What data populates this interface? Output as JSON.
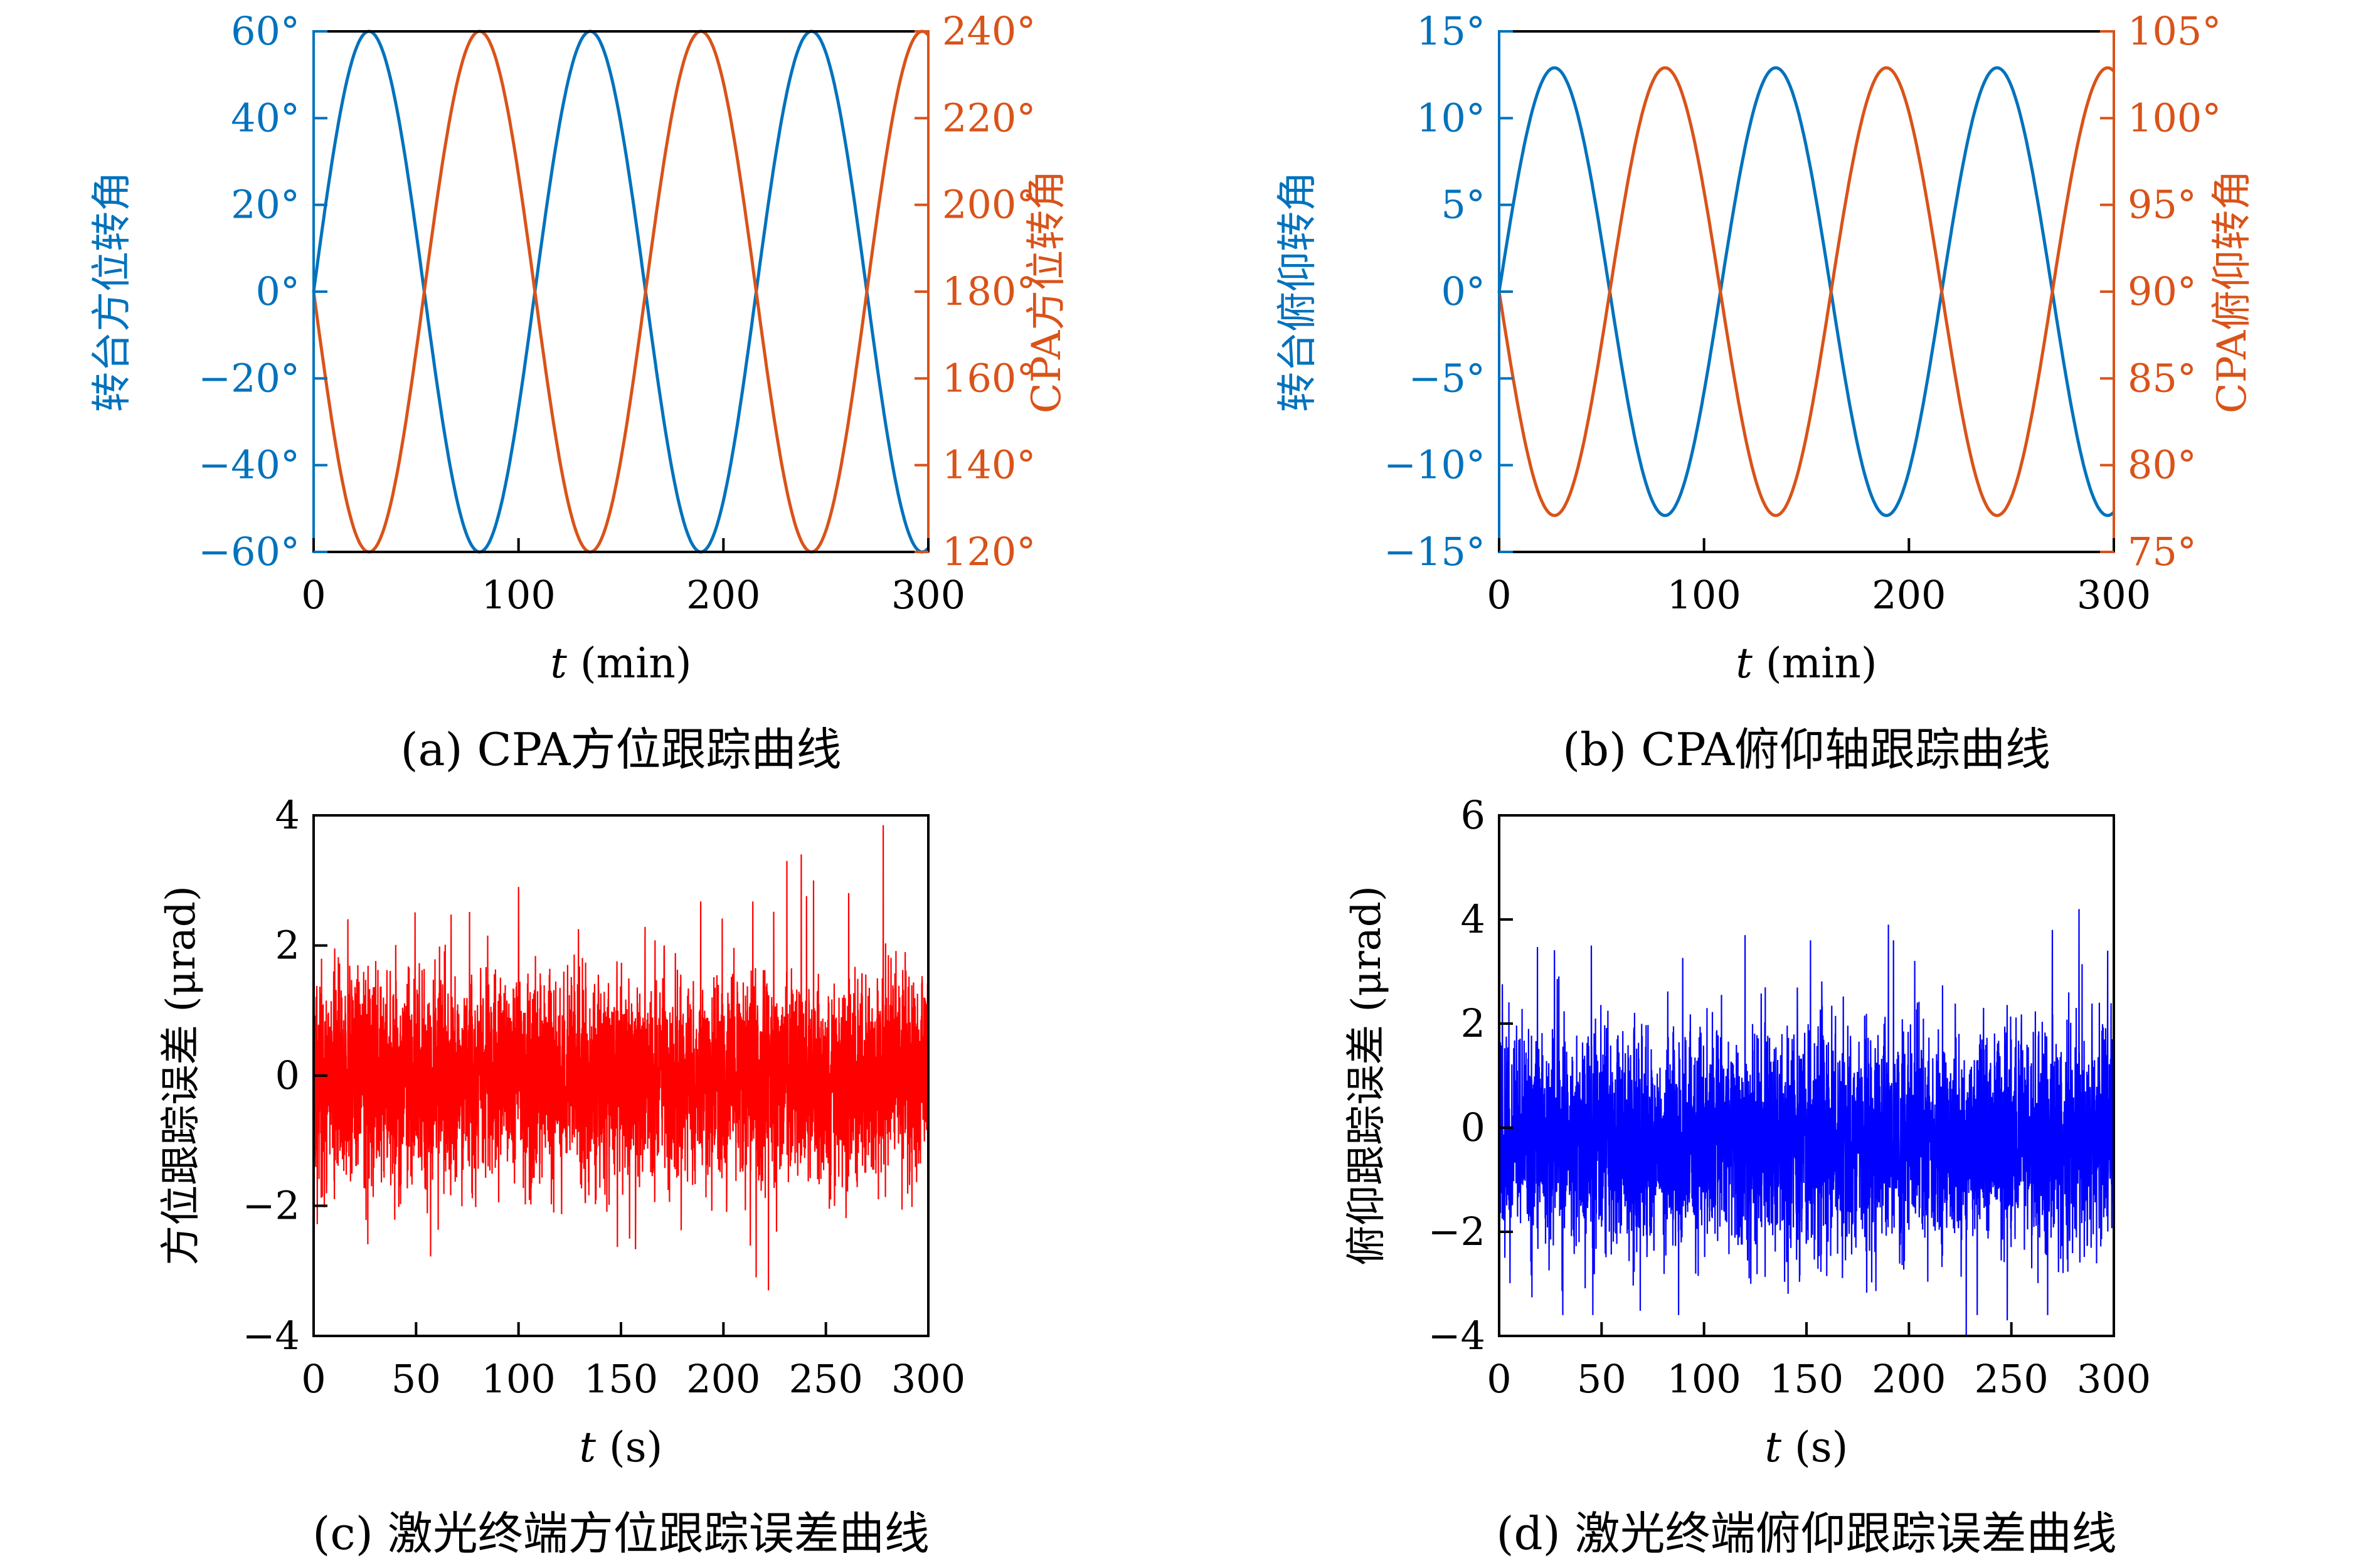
{
  "figure": {
    "background": "#FFFFFF"
  },
  "chart_data": [
    {
      "id": "a",
      "type": "line",
      "caption": "(a) CPA方位跟踪曲线",
      "xlabel_var": "t",
      "xlabel_unit": "(min)",
      "xlim": [
        0,
        300
      ],
      "x_ticks": [
        0,
        100,
        200,
        300
      ],
      "grid": "off",
      "axes": {
        "left": {
          "label": "转台方位转角",
          "color": "#0072BD",
          "lim": [
            -60,
            60
          ],
          "tick_values": [
            60,
            40,
            20,
            0,
            -20,
            -40,
            -60
          ],
          "tick_labels": [
            "60°",
            "40°",
            "20°",
            "0°",
            "−20°",
            "−40°",
            "−60°"
          ]
        },
        "right": {
          "label": "CPA方位转角",
          "color": "#D95319",
          "lim": [
            120,
            240
          ],
          "tick_values": [
            240,
            220,
            200,
            180,
            160,
            140,
            120
          ],
          "tick_labels": [
            "240°",
            "220°",
            "200°",
            "180°",
            "160°",
            "140°",
            "120°"
          ]
        }
      },
      "series": [
        {
          "key": "turntable-azimuth",
          "name": "转台方位转角",
          "axis": "left",
          "color": "#0072BD",
          "model": "sine",
          "amplitude": 60,
          "offset": 0,
          "period": 108
        },
        {
          "key": "cpa-azimuth",
          "name": "CPA方位转角",
          "axis": "right",
          "color": "#D95319",
          "model": "sine",
          "amplitude": -60,
          "offset": 180,
          "period": 108
        }
      ]
    },
    {
      "id": "b",
      "type": "line",
      "caption": "(b) CPA俯仰轴跟踪曲线",
      "xlabel_var": "t",
      "xlabel_unit": "(min)",
      "xlim": [
        0,
        300
      ],
      "x_ticks": [
        0,
        100,
        200,
        300
      ],
      "grid": "off",
      "axes": {
        "left": {
          "label": "转台俯仰转角",
          "color": "#0072BD",
          "lim": [
            -15,
            15
          ],
          "tick_values": [
            15,
            10,
            5,
            0,
            -5,
            -10,
            -15
          ],
          "tick_labels": [
            "15°",
            "10°",
            "5°",
            "0°",
            "−5°",
            "−10°",
            "−15°"
          ]
        },
        "right": {
          "label": "CPA俯仰转角",
          "color": "#D95319",
          "lim": [
            75,
            105
          ],
          "tick_values": [
            105,
            100,
            95,
            90,
            85,
            80,
            75
          ],
          "tick_labels": [
            "105°",
            "100°",
            "95°",
            "90°",
            "85°",
            "80°",
            "75°"
          ]
        }
      },
      "series": [
        {
          "key": "turntable-pitch",
          "name": "转台俯仰转角",
          "axis": "left",
          "color": "#0072BD",
          "model": "sine",
          "amplitude": 12.9,
          "offset": 0,
          "period": 108
        },
        {
          "key": "cpa-pitch",
          "name": "CPA俯仰转角",
          "axis": "right",
          "color": "#D95319",
          "model": "sine",
          "amplitude": -12.9,
          "offset": 90,
          "period": 108
        }
      ]
    },
    {
      "id": "c",
      "type": "line",
      "caption": "(c) 激光终端方位跟踪误差曲线",
      "xlabel_var": "t",
      "xlabel_unit": "(s)",
      "xlim": [
        0,
        300
      ],
      "x_ticks": [
        0,
        50,
        100,
        150,
        200,
        250,
        300
      ],
      "grid": "off",
      "axes": {
        "left": {
          "label": "方位跟踪误差 (μrad)",
          "color": "#000000",
          "lim": [
            -4,
            4
          ],
          "tick_values": [
            4,
            2,
            0,
            -2,
            -4
          ],
          "tick_labels": [
            "4",
            "2",
            "0",
            "−2",
            "−4"
          ]
        }
      },
      "series": [
        {
          "key": "azimuth-tracking-error",
          "name": "方位跟踪误差",
          "axis": "left",
          "color": "#FF0000",
          "model": "noise",
          "n": 4200,
          "seed": 20,
          "mean": -0.05,
          "sigma": 0.8,
          "clip": [
            -3.2,
            3.2
          ],
          "spikes": [
            {
              "t": 100,
              "v": 2.9
            },
            {
              "t": 216,
              "v": -3.1
            },
            {
              "t": 222,
              "v": -3.3
            },
            {
              "t": 231,
              "v": 3.3
            },
            {
              "t": 238,
              "v": 3.4
            },
            {
              "t": 244,
              "v": 3.0
            },
            {
              "t": 278,
              "v": 3.85
            }
          ]
        }
      ]
    },
    {
      "id": "d",
      "type": "line",
      "caption": "(d) 激光终端俯仰跟踪误差曲线",
      "xlabel_var": "t",
      "xlabel_unit": "(s)",
      "xlim": [
        0,
        300
      ],
      "x_ticks": [
        0,
        50,
        100,
        150,
        200,
        250,
        300
      ],
      "grid": "off",
      "axes": {
        "left": {
          "label": "俯仰跟踪误差 (μrad)",
          "color": "#000000",
          "lim": [
            -4,
            6
          ],
          "tick_values": [
            6,
            4,
            2,
            0,
            -2,
            -4
          ],
          "tick_labels": [
            "6",
            "4",
            "2",
            "0",
            "−2",
            "−4"
          ]
        }
      },
      "series": [
        {
          "key": "pitch-tracking-error",
          "name": "俯仰跟踪误差",
          "axis": "left",
          "color": "#0000FF",
          "model": "noise",
          "n": 4200,
          "seed": 77,
          "mean": -0.25,
          "sigma": 1.05,
          "clip": [
            -3.6,
            3.6
          ],
          "spikes": [
            {
              "t": 45,
              "v": 3.5
            },
            {
              "t": 120,
              "v": 3.7
            },
            {
              "t": 152,
              "v": 3.6
            },
            {
              "t": 190,
              "v": 3.9
            },
            {
              "t": 228,
              "v": -4.0
            },
            {
              "t": 248,
              "v": -3.7
            },
            {
              "t": 270,
              "v": 3.8
            },
            {
              "t": 283,
              "v": 4.2
            },
            {
              "t": 297,
              "v": 3.4
            }
          ]
        }
      ]
    }
  ]
}
